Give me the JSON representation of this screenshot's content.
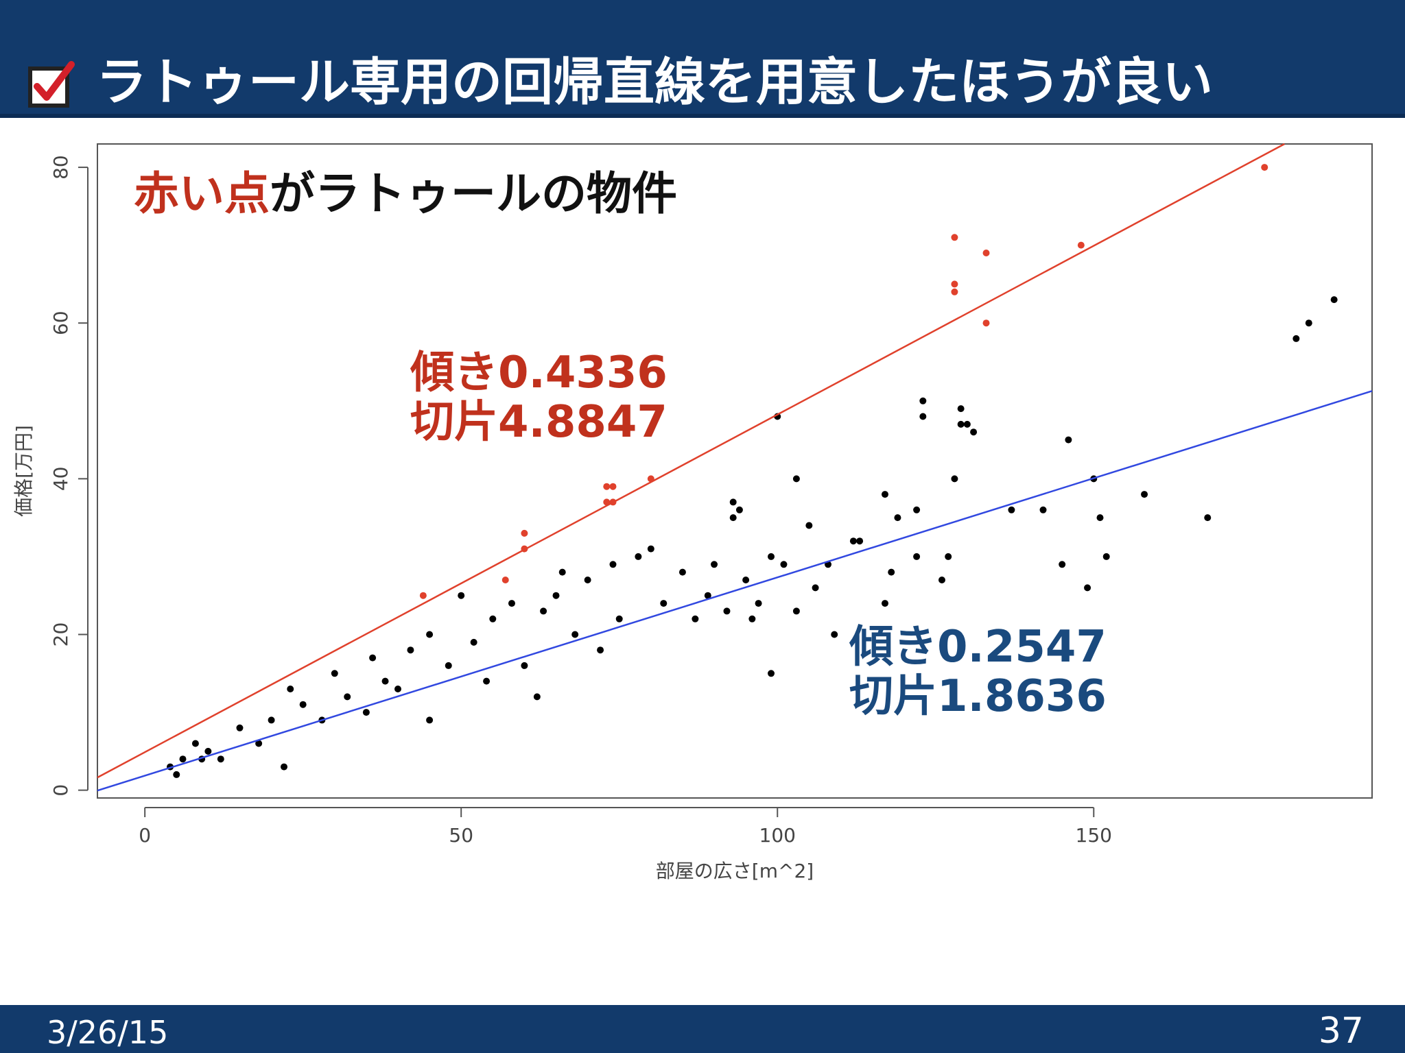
{
  "header": {
    "title": "ラトゥール専用の回帰直線を用意したほうが良い",
    "icon": "checkbox-check-icon"
  },
  "footer": {
    "date": "3/26/15",
    "page": "37"
  },
  "colors": {
    "header_bg": "#123a6b",
    "red": "#e0412c",
    "blue": "#3148e0",
    "red_text": "#c0311d",
    "blue_text": "#1a4a7e"
  },
  "caption": {
    "highlight": "赤い点",
    "rest": "がラトゥールの物件"
  },
  "annotations": {
    "red_slope": "傾き0.4336",
    "red_intercept": "切片4.8847",
    "blue_slope": "傾き0.2547",
    "blue_intercept": "切片1.8636"
  },
  "chart_data": {
    "type": "scatter",
    "xlabel": "部屋の広さ[m^2]",
    "ylabel": "価格[万円]",
    "xlim": [
      -7.5,
      194
    ],
    "ylim": [
      -1,
      83
    ],
    "xticks": [
      0,
      50,
      100,
      150
    ],
    "yticks": [
      0,
      20,
      40,
      60,
      80
    ],
    "grid": false,
    "series": [
      {
        "color": "red",
        "points": [
          [
            44,
            25
          ],
          [
            57,
            27
          ],
          [
            60,
            31
          ],
          [
            60,
            33
          ],
          [
            73,
            37
          ],
          [
            74,
            37
          ],
          [
            73,
            39
          ],
          [
            74,
            39
          ],
          [
            80,
            40
          ],
          [
            128,
            71
          ],
          [
            128,
            65
          ],
          [
            128,
            64
          ],
          [
            133,
            69
          ],
          [
            133,
            60
          ],
          [
            148,
            70
          ],
          [
            177,
            80
          ]
        ]
      },
      {
        "color": "black",
        "points": [
          [
            4,
            3
          ],
          [
            5,
            2
          ],
          [
            6,
            4
          ],
          [
            8,
            6
          ],
          [
            9,
            4
          ],
          [
            10,
            5
          ],
          [
            12,
            4
          ],
          [
            15,
            8
          ],
          [
            18,
            6
          ],
          [
            20,
            9
          ],
          [
            22,
            3
          ],
          [
            23,
            13
          ],
          [
            25,
            11
          ],
          [
            28,
            9
          ],
          [
            30,
            15
          ],
          [
            32,
            12
          ],
          [
            35,
            10
          ],
          [
            36,
            17
          ],
          [
            38,
            14
          ],
          [
            40,
            13
          ],
          [
            42,
            18
          ],
          [
            45,
            9
          ],
          [
            45,
            20
          ],
          [
            48,
            16
          ],
          [
            50,
            25
          ],
          [
            52,
            19
          ],
          [
            54,
            14
          ],
          [
            55,
            22
          ],
          [
            58,
            24
          ],
          [
            60,
            16
          ],
          [
            62,
            12
          ],
          [
            63,
            23
          ],
          [
            65,
            25
          ],
          [
            66,
            28
          ],
          [
            68,
            20
          ],
          [
            70,
            27
          ],
          [
            72,
            18
          ],
          [
            74,
            29
          ],
          [
            75,
            22
          ],
          [
            78,
            30
          ],
          [
            80,
            31
          ],
          [
            82,
            24
          ],
          [
            85,
            28
          ],
          [
            87,
            22
          ],
          [
            89,
            25
          ],
          [
            90,
            29
          ],
          [
            92,
            23
          ],
          [
            93,
            37
          ],
          [
            93,
            35
          ],
          [
            94,
            36
          ],
          [
            95,
            27
          ],
          [
            96,
            22
          ],
          [
            97,
            24
          ],
          [
            99,
            30
          ],
          [
            99,
            15
          ],
          [
            100,
            48
          ],
          [
            101,
            29
          ],
          [
            103,
            40
          ],
          [
            103,
            23
          ],
          [
            105,
            34
          ],
          [
            106,
            26
          ],
          [
            108,
            29
          ],
          [
            109,
            20
          ],
          [
            112,
            32
          ],
          [
            113,
            32
          ],
          [
            117,
            38
          ],
          [
            117,
            24
          ],
          [
            118,
            28
          ],
          [
            119,
            35
          ],
          [
            122,
            36
          ],
          [
            122,
            30
          ],
          [
            123,
            50
          ],
          [
            123,
            48
          ],
          [
            126,
            27
          ],
          [
            127,
            30
          ],
          [
            128,
            40
          ],
          [
            129,
            49
          ],
          [
            129,
            47
          ],
          [
            130,
            47
          ],
          [
            131,
            46
          ],
          [
            137,
            36
          ],
          [
            142,
            36
          ],
          [
            145,
            29
          ],
          [
            146,
            45
          ],
          [
            149,
            26
          ],
          [
            150,
            40
          ],
          [
            151,
            35
          ],
          [
            152,
            30
          ],
          [
            158,
            38
          ],
          [
            168,
            35
          ],
          [
            182,
            58
          ],
          [
            184,
            60
          ],
          [
            188,
            63
          ]
        ]
      }
    ],
    "regression_lines": [
      {
        "color": "red",
        "slope": 0.4336,
        "intercept": 4.8847
      },
      {
        "color": "blue",
        "slope": 0.2547,
        "intercept": 1.8636
      }
    ]
  }
}
